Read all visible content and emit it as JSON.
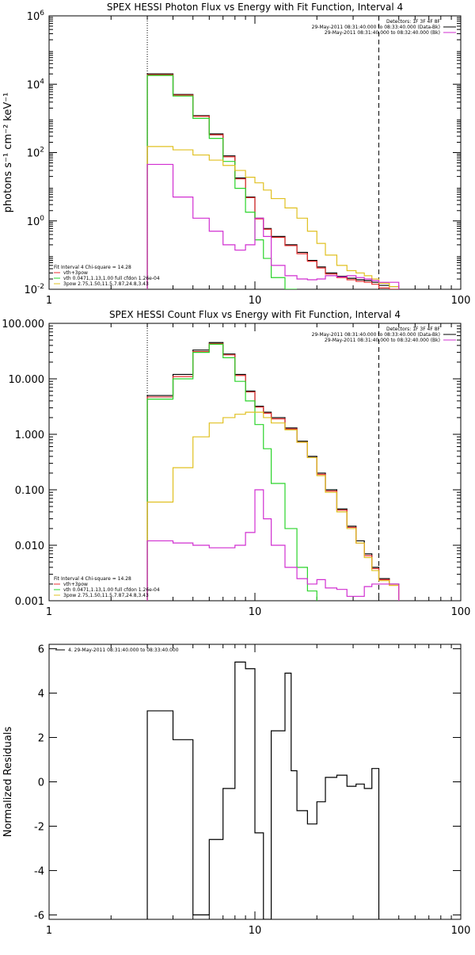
{
  "chart_data": [
    {
      "type": "line",
      "title": "SPEX HESSI Photon Flux vs Energy with Fit Function, Interval 4",
      "ylabel": "photons s⁻¹ cm⁻² keV⁻¹",
      "xscale": "log",
      "yscale": "log",
      "xlim": [
        1,
        100
      ],
      "ylim": [
        0.01,
        1000000
      ],
      "x_ticks": [
        "1",
        "10",
        "100"
      ],
      "y_ticks": [
        {
          "value": 0.01,
          "base": "10",
          "exp": "-2"
        },
        {
          "value": 1,
          "base": "10",
          "exp": "0"
        },
        {
          "value": 100,
          "base": "10",
          "exp": "2"
        },
        {
          "value": 10000,
          "base": "10",
          "exp": "4"
        },
        {
          "value": 1000000,
          "base": "10",
          "exp": "6"
        }
      ],
      "vlines": [
        {
          "x": 3,
          "style": "dotted"
        },
        {
          "x": 40,
          "style": "dashed"
        }
      ],
      "legend_top": [
        {
          "text": "Detectors: 1F 3F 4F 8F",
          "color": "#000000"
        },
        {
          "text": "29-May-2011 08:31:40.000 to 08:33:40.000 (Data-Bk)",
          "color": "#000000"
        },
        {
          "text": "29-May-2011 08:31:40.000 to 08:32:40.000 (Bk)",
          "color": "#d12fd1"
        }
      ],
      "legend_bottom": [
        {
          "text": "Fit Interval  4    Chi-square = 14.28",
          "color": "#000000"
        },
        {
          "text": "vth+3pow",
          "color": "#e83030"
        },
        {
          "text": "vth 0.0471,1.13,1.00  full cfdon 1.26e-04",
          "color": "#2ad42a"
        },
        {
          "text": "3pow 2.75,1.50,11.5,7.87,24.8,3.43",
          "color": "#e0c020"
        }
      ],
      "bin_edges": [
        3,
        3.5,
        4,
        5,
        6,
        7,
        8,
        9,
        10,
        11,
        12,
        14,
        16,
        18,
        20,
        22,
        25,
        28,
        31,
        34,
        37,
        40,
        45,
        50
      ],
      "series": [
        {
          "color": "#000000",
          "values": [
            20000,
            20000,
            5000,
            1200,
            350,
            80,
            18,
            5,
            1.2,
            0.6,
            0.35,
            0.2,
            0.12,
            0.07,
            0.045,
            0.03,
            0.024,
            0.021,
            0.019,
            0.018,
            0.016,
            0.013,
            0.012
          ]
        },
        {
          "color": "#e83030",
          "values": [
            19000,
            19000,
            4800,
            1150,
            330,
            75,
            17,
            4.8,
            1.15,
            0.57,
            0.33,
            0.19,
            0.11,
            0.066,
            0.042,
            0.028,
            0.022,
            0.019,
            0.017,
            0.016,
            0.014,
            0.011,
            0.01
          ]
        },
        {
          "color": "#2ad42a",
          "values": [
            18000,
            18000,
            4500,
            1000,
            260,
            55,
            9,
            1.8,
            0.28,
            0.08,
            0.022,
            0.01,
            null,
            null,
            null,
            null,
            null,
            null,
            null,
            null,
            null,
            null,
            null
          ]
        },
        {
          "color": "#e0c020",
          "values": [
            150,
            150,
            120,
            85,
            60,
            42,
            30,
            19,
            13,
            8,
            4.5,
            2.4,
            1.2,
            0.5,
            0.22,
            0.1,
            0.05,
            0.035,
            0.03,
            0.025,
            0.02,
            0.015,
            0.012
          ]
        },
        {
          "color": "#d12fd1",
          "values": [
            45,
            45,
            5,
            1.2,
            0.5,
            0.2,
            0.14,
            0.2,
            1.2,
            0.35,
            0.05,
            0.025,
            0.02,
            0.019,
            0.02,
            0.025,
            0.023,
            0.025,
            0.022,
            0.02,
            0.018,
            0.016,
            0.016
          ]
        }
      ]
    },
    {
      "type": "line",
      "title": "SPEX HESSI Count Flux vs Energy with Fit Function, Interval 4",
      "xscale": "log",
      "yscale": "log",
      "xlim": [
        1,
        100
      ],
      "ylim": [
        0.001,
        100
      ],
      "x_ticks": [
        "1",
        "10",
        "100"
      ],
      "y_ticks": [
        {
          "value": 0.001,
          "label": "0.001"
        },
        {
          "value": 0.01,
          "label": "0.010"
        },
        {
          "value": 0.1,
          "label": "0.100"
        },
        {
          "value": 1,
          "label": "1.000"
        },
        {
          "value": 10,
          "label": "10.000"
        },
        {
          "value": 100,
          "label": "100.000"
        }
      ],
      "vlines": [
        {
          "x": 3,
          "style": "dotted"
        },
        {
          "x": 40,
          "style": "dashed"
        }
      ],
      "legend_top": [
        {
          "text": "Detectors: 1F 3F 4F 8F",
          "color": "#000000"
        },
        {
          "text": "29-May-2011 08:31:40.000 to 08:33:40.000 (Data-Bk)",
          "color": "#000000"
        },
        {
          "text": "29-May-2011 08:31:40.000 to 08:32:40.000 (Bk)",
          "color": "#d12fd1"
        }
      ],
      "legend_bottom": [
        {
          "text": "Fit Interval  4    Chi-square = 14.28",
          "color": "#000000"
        },
        {
          "text": "vth+3pow",
          "color": "#e83030"
        },
        {
          "text": "vth 0.0471,1.13,1.00  full cfdon 1.26e-04",
          "color": "#2ad42a"
        },
        {
          "text": "3pow 2.75,1.50,11.5,7.87,24.8,3.43",
          "color": "#e0c020"
        }
      ],
      "bin_edges": [
        3,
        3.5,
        4,
        5,
        6,
        7,
        8,
        9,
        10,
        11,
        12,
        14,
        16,
        18,
        20,
        22,
        25,
        28,
        31,
        34,
        37,
        40,
        45,
        50
      ],
      "series": [
        {
          "color": "#000000",
          "values": [
            5,
            5,
            12,
            33,
            45,
            28,
            12,
            6,
            3.2,
            2.5,
            2,
            1.3,
            0.75,
            0.4,
            0.2,
            0.1,
            0.045,
            0.022,
            0.012,
            0.007,
            0.004,
            0.0025,
            0.002
          ]
        },
        {
          "color": "#e83030",
          "values": [
            4.7,
            4.7,
            11,
            31,
            43,
            27,
            11.5,
            5.8,
            3.1,
            2.4,
            1.9,
            1.25,
            0.72,
            0.38,
            0.19,
            0.095,
            0.043,
            0.021,
            0.011,
            0.0065,
            0.0038,
            0.0024,
            0.0019
          ]
        },
        {
          "color": "#2ad42a",
          "values": [
            4.3,
            4.3,
            10,
            30,
            42,
            24,
            9,
            4,
            1.5,
            0.55,
            0.13,
            0.02,
            0.004,
            0.0015,
            null,
            null,
            null,
            null,
            null,
            null,
            null,
            null,
            null
          ]
        },
        {
          "color": "#e0c020",
          "values": [
            0.06,
            0.06,
            0.25,
            0.9,
            1.6,
            2,
            2.3,
            2.5,
            2.5,
            2,
            1.6,
            1.2,
            0.72,
            0.38,
            0.18,
            0.09,
            0.04,
            0.02,
            0.011,
            0.006,
            0.0035,
            0.0023,
            0.0019
          ]
        },
        {
          "color": "#d12fd1",
          "values": [
            0.012,
            0.012,
            0.011,
            0.01,
            0.009,
            0.009,
            0.01,
            0.017,
            0.1,
            0.03,
            0.01,
            0.004,
            0.0025,
            0.002,
            0.0024,
            0.0017,
            0.0016,
            0.0012,
            0.0012,
            0.0018,
            0.002,
            0.002,
            0.002
          ]
        }
      ]
    },
    {
      "type": "line",
      "title": "",
      "ylabel": "Normalized Residuals",
      "xscale": "log",
      "xlim": [
        1,
        100
      ],
      "ylim": [
        -6.2,
        6.2
      ],
      "x_ticks": [
        "1",
        "10",
        "100"
      ],
      "y_ticks": [
        {
          "value": -6,
          "label": "-6"
        },
        {
          "value": -4,
          "label": "-4"
        },
        {
          "value": -2,
          "label": "-2"
        },
        {
          "value": 0,
          "label": "0"
        },
        {
          "value": 2,
          "label": "2"
        },
        {
          "value": 4,
          "label": "4"
        },
        {
          "value": 6,
          "label": "6"
        }
      ],
      "legend_top": [
        {
          "text": "4. 29-May-2011 08:31:40.000 to 08:33:40.000",
          "color": "#000000"
        }
      ],
      "bin_edges": [
        3,
        4,
        5,
        6,
        7,
        8,
        9,
        10,
        11,
        12,
        14,
        15,
        16,
        18,
        20,
        22,
        25,
        28,
        31,
        34,
        37,
        40
      ],
      "series": [
        {
          "color": "#000000",
          "values": [
            3.2,
            1.9,
            -6.0,
            -2.6,
            -0.3,
            5.4,
            5.1,
            -2.3,
            -6.2,
            2.3,
            4.9,
            0.5,
            -1.3,
            -1.9,
            -0.9,
            0.2,
            0.3,
            -0.2,
            -0.1,
            -0.3,
            0.6
          ]
        }
      ]
    }
  ]
}
